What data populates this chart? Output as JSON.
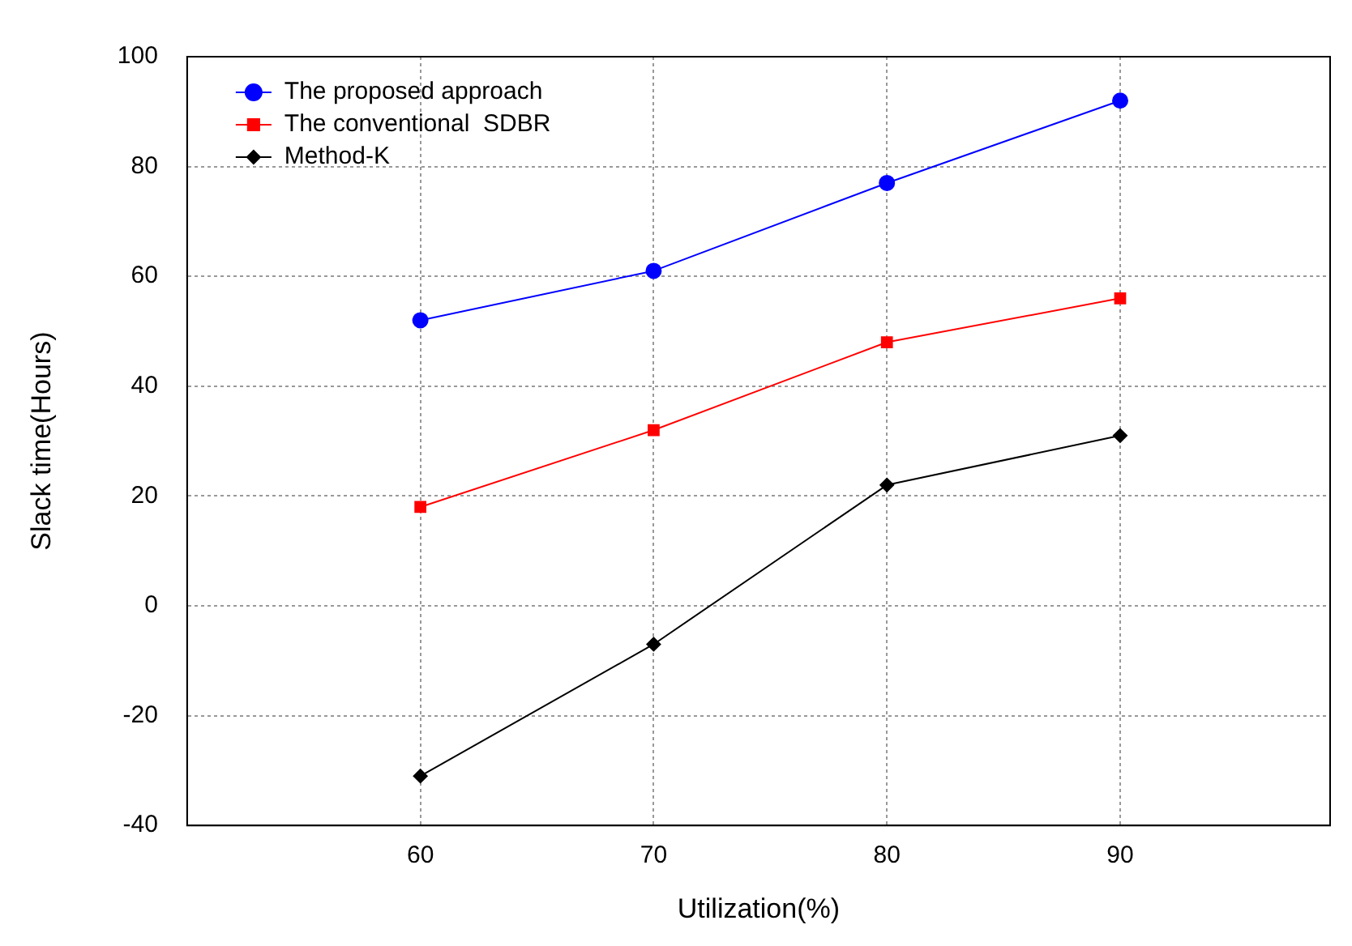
{
  "chart_data": {
    "type": "line",
    "xlabel": "Utilization(%)",
    "ylabel": "Slack time(Hours)",
    "x": [
      60,
      70,
      80,
      90
    ],
    "series": [
      {
        "name": "The proposed approach",
        "color": "#0000ff",
        "marker": "circle",
        "values": [
          52,
          61,
          77,
          92
        ]
      },
      {
        "name": "The conventional  SDBR",
        "color": "#ff0000",
        "marker": "square",
        "values": [
          18,
          32,
          48,
          56
        ]
      },
      {
        "name": "Method-K",
        "color": "#000000",
        "marker": "diamond",
        "values": [
          -31,
          -7,
          22,
          31
        ]
      }
    ],
    "xlim": [
      50,
      99
    ],
    "xticks": [
      60,
      70,
      80,
      90
    ],
    "ylim": [
      -40,
      100
    ],
    "yticks": [
      -40,
      -20,
      0,
      20,
      40,
      60,
      80,
      100
    ],
    "grid": true,
    "legend": "top left",
    "line_style": "solid"
  }
}
